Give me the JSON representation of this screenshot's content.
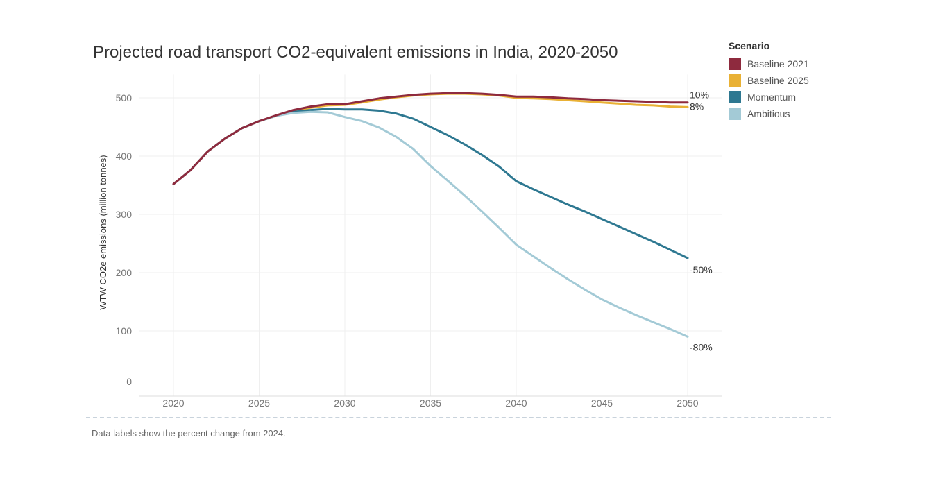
{
  "chart_data": {
    "type": "line",
    "title": "Projected road transport CO2-equivalent emissions in India, 2020-2050",
    "xlabel": "",
    "ylabel": "WTW CO2e emissions (million tonnes)",
    "xlim": [
      2018,
      2052
    ],
    "ylim": [
      0,
      540
    ],
    "xticks": [
      2020,
      2025,
      2030,
      2035,
      2040,
      2045,
      2050
    ],
    "yticks": [
      0,
      100,
      200,
      300,
      400,
      500
    ],
    "grid": true,
    "legend_title": "Scenario",
    "legend_position": "right",
    "x": [
      2020,
      2021,
      2022,
      2023,
      2024,
      2025,
      2026,
      2027,
      2028,
      2029,
      2030,
      2031,
      2032,
      2033,
      2034,
      2035,
      2036,
      2037,
      2038,
      2039,
      2040,
      2041,
      2042,
      2043,
      2044,
      2045,
      2046,
      2047,
      2048,
      2049,
      2050
    ],
    "series": [
      {
        "name": "Baseline 2021",
        "color": "#8e2a3e",
        "end_label": "10%",
        "values": [
          352,
          376,
          408,
          430,
          448,
          460,
          470,
          479,
          485,
          489,
          489,
          494,
          499,
          502,
          505,
          507,
          508,
          508,
          507,
          505,
          502,
          502,
          501,
          499,
          498,
          496,
          495,
          494,
          493,
          492,
          492
        ]
      },
      {
        "name": "Baseline 2025",
        "color": "#e9b135",
        "end_label": "8%",
        "values": [
          352,
          376,
          408,
          430,
          448,
          460,
          469,
          477,
          483,
          487,
          488,
          492,
          497,
          501,
          504,
          506,
          507,
          507,
          506,
          504,
          500,
          499,
          498,
          496,
          494,
          492,
          490,
          488,
          487,
          485,
          484
        ]
      },
      {
        "name": "Momentum",
        "color": "#2e7891",
        "end_label": "-50%",
        "values": [
          352,
          376,
          408,
          430,
          448,
          460,
          469,
          476,
          479,
          481,
          480,
          480,
          478,
          473,
          464,
          450,
          436,
          420,
          402,
          382,
          357,
          343,
          330,
          317,
          305,
          292,
          279,
          266,
          253,
          239,
          225
        ]
      },
      {
        "name": "Ambitious",
        "color": "#a3cad6",
        "end_label": "-80%",
        "values": [
          352,
          376,
          408,
          430,
          448,
          460,
          469,
          474,
          476,
          475,
          467,
          460,
          449,
          433,
          412,
          383,
          358,
          332,
          305,
          277,
          248,
          228,
          208,
          189,
          171,
          154,
          140,
          127,
          115,
          103,
          90
        ]
      }
    ]
  },
  "footnote": "Data labels show the percent change from 2024."
}
